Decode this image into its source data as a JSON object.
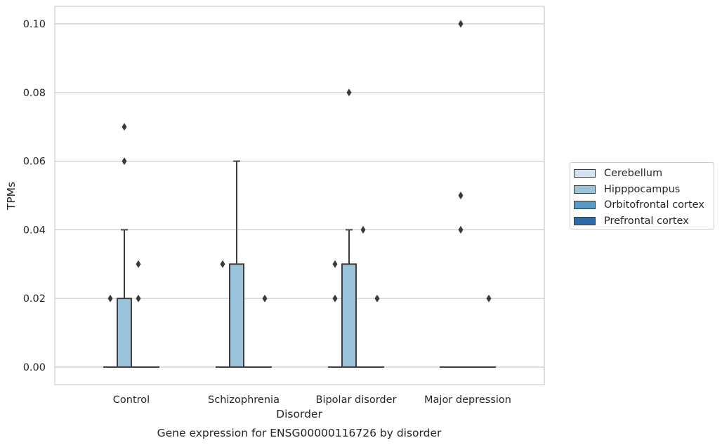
{
  "chart_data": {
    "type": "box",
    "title": "Gene expression for ENSG00000116726 by disorder",
    "xlabel": "Disorder",
    "ylabel": "TPMs",
    "ylim": [
      -0.005,
      0.105
    ],
    "yticks": [
      0.0,
      0.02,
      0.04,
      0.06,
      0.08,
      0.1
    ],
    "ytick_labels": [
      "0.00",
      "0.02",
      "0.04",
      "0.06",
      "0.08",
      "0.10"
    ],
    "categories": [
      "Control",
      "Schizophrenia",
      "Bipolar disorder",
      "Major depression"
    ],
    "grid": true,
    "legend_position": "right",
    "series": [
      {
        "name": "Cerebellum",
        "color": "#d2e2f0",
        "boxes": [
          {
            "category": "Control",
            "q1": 0,
            "median": 0,
            "q3": 0,
            "whisker_low": 0,
            "whisker_high": 0,
            "outliers": [
              0.02
            ]
          },
          {
            "category": "Schizophrenia",
            "q1": 0,
            "median": 0,
            "q3": 0,
            "whisker_low": 0,
            "whisker_high": 0,
            "outliers": [
              0.03
            ]
          },
          {
            "category": "Bipolar disorder",
            "q1": 0,
            "median": 0,
            "q3": 0,
            "whisker_low": 0,
            "whisker_high": 0,
            "outliers": [
              0.02,
              0.03
            ]
          },
          {
            "category": "Major depression",
            "q1": 0,
            "median": 0,
            "q3": 0,
            "whisker_low": 0,
            "whisker_high": 0,
            "outliers": []
          }
        ]
      },
      {
        "name": "Hipppocampus",
        "color": "#9bc3d9",
        "boxes": [
          {
            "category": "Control",
            "q1": 0,
            "median": 0,
            "q3": 0.02,
            "whisker_low": 0,
            "whisker_high": 0.04,
            "outliers": [
              0.06,
              0.07
            ]
          },
          {
            "category": "Schizophrenia",
            "q1": 0,
            "median": 0,
            "q3": 0.03,
            "whisker_low": 0,
            "whisker_high": 0.06,
            "outliers": []
          },
          {
            "category": "Bipolar disorder",
            "q1": 0,
            "median": 0,
            "q3": 0.03,
            "whisker_low": 0,
            "whisker_high": 0.04,
            "outliers": [
              0.08
            ]
          },
          {
            "category": "Major depression",
            "q1": 0,
            "median": 0,
            "q3": 0,
            "whisker_low": 0,
            "whisker_high": 0,
            "outliers": [
              0.04,
              0.05,
              0.1
            ]
          }
        ]
      },
      {
        "name": "Orbitofrontal cortex",
        "color": "#5a9bc5",
        "boxes": [
          {
            "category": "Control",
            "q1": 0,
            "median": 0,
            "q3": 0,
            "whisker_low": 0,
            "whisker_high": 0,
            "outliers": [
              0.02,
              0.03
            ]
          },
          {
            "category": "Schizophrenia",
            "q1": 0,
            "median": 0,
            "q3": 0,
            "whisker_low": 0,
            "whisker_high": 0,
            "outliers": []
          },
          {
            "category": "Bipolar disorder",
            "q1": 0,
            "median": 0,
            "q3": 0,
            "whisker_low": 0,
            "whisker_high": 0,
            "outliers": [
              0.04
            ]
          },
          {
            "category": "Major depression",
            "q1": 0,
            "median": 0,
            "q3": 0,
            "whisker_low": 0,
            "whisker_high": 0,
            "outliers": []
          }
        ]
      },
      {
        "name": "Prefrontal cortex",
        "color": "#2c6ba7",
        "boxes": [
          {
            "category": "Control",
            "q1": 0,
            "median": 0,
            "q3": 0,
            "whisker_low": 0,
            "whisker_high": 0,
            "outliers": []
          },
          {
            "category": "Schizophrenia",
            "q1": 0,
            "median": 0,
            "q3": 0,
            "whisker_low": 0,
            "whisker_high": 0,
            "outliers": [
              0.02
            ]
          },
          {
            "category": "Bipolar disorder",
            "q1": 0,
            "median": 0,
            "q3": 0,
            "whisker_low": 0,
            "whisker_high": 0,
            "outliers": [
              0.02
            ]
          },
          {
            "category": "Major depression",
            "q1": 0,
            "median": 0,
            "q3": 0,
            "whisker_low": 0,
            "whisker_high": 0,
            "outliers": [
              0.02
            ]
          }
        ]
      }
    ]
  }
}
